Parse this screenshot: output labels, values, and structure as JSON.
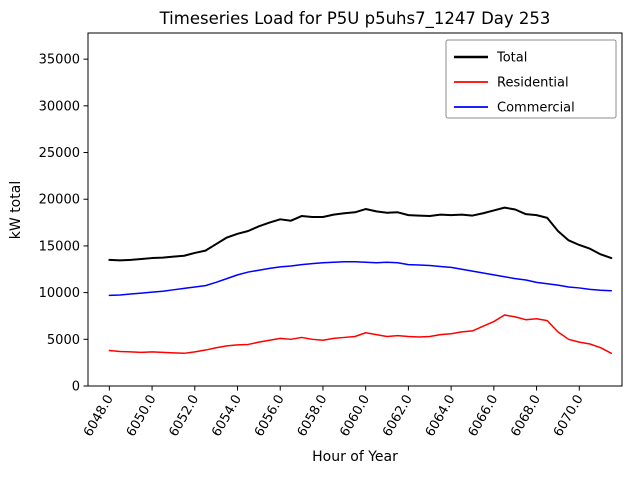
{
  "chart_data": {
    "type": "line",
    "title": "Timeseries Load for P5U p5uhs7_1247  Day 253",
    "xlabel": "Hour of Year",
    "ylabel": "kW total",
    "xlim": [
      6047,
      6072
    ],
    "ylim": [
      0,
      37800
    ],
    "grid": false,
    "legend_position": "upper right",
    "xtick_values": [
      6048,
      6050,
      6052,
      6054,
      6056,
      6058,
      6060,
      6062,
      6064,
      6066,
      6068,
      6070
    ],
    "xtick_labels": [
      "6048.0",
      "6050.0",
      "6052.0",
      "6054.0",
      "6056.0",
      "6058.0",
      "6060.0",
      "6062.0",
      "6064.0",
      "6066.0",
      "6068.0",
      "6070.0"
    ],
    "ytick_values": [
      0,
      5000,
      10000,
      15000,
      20000,
      25000,
      30000,
      35000
    ],
    "ytick_labels": [
      "0",
      "5000",
      "10000",
      "15000",
      "20000",
      "25000",
      "30000",
      "35000"
    ],
    "x": [
      6048.0,
      6048.5,
      6049.0,
      6049.5,
      6050.0,
      6050.5,
      6051.0,
      6051.5,
      6052.0,
      6052.5,
      6053.0,
      6053.5,
      6054.0,
      6054.5,
      6055.0,
      6055.5,
      6056.0,
      6056.5,
      6057.0,
      6057.5,
      6058.0,
      6058.5,
      6059.0,
      6059.5,
      6060.0,
      6060.5,
      6061.0,
      6061.5,
      6062.0,
      6062.5,
      6063.0,
      6063.5,
      6064.0,
      6064.5,
      6065.0,
      6065.5,
      6066.0,
      6066.5,
      6067.0,
      6067.5,
      6068.0,
      6068.5,
      6069.0,
      6069.5,
      6070.0,
      6070.5,
      6071.0,
      6071.5
    ],
    "series": [
      {
        "name": "Total",
        "color": "#000000",
        "linewidth": 2.0,
        "values": [
          13500,
          13450,
          13500,
          13600,
          13700,
          13750,
          13850,
          13950,
          14250,
          14500,
          15200,
          15900,
          16300,
          16600,
          17100,
          17500,
          17850,
          17700,
          18200,
          18100,
          18100,
          18350,
          18500,
          18600,
          18950,
          18700,
          18550,
          18600,
          18300,
          18250,
          18200,
          18350,
          18300,
          18350,
          18250,
          18500,
          18800,
          19100,
          18900,
          18400,
          18300,
          18000,
          16600,
          15600,
          15100,
          14700,
          14100,
          13700
        ]
      },
      {
        "name": "Residential",
        "color": "#ff0000",
        "linewidth": 1.5,
        "values": [
          3800,
          3700,
          3650,
          3600,
          3650,
          3600,
          3550,
          3500,
          3650,
          3850,
          4100,
          4300,
          4400,
          4450,
          4700,
          4900,
          5100,
          5000,
          5200,
          5000,
          4900,
          5100,
          5200,
          5300,
          5700,
          5500,
          5300,
          5400,
          5300,
          5250,
          5300,
          5500,
          5600,
          5800,
          5900,
          6400,
          6900,
          7600,
          7400,
          7100,
          7200,
          7000,
          5800,
          5000,
          4700,
          4500,
          4100,
          3500
        ]
      },
      {
        "name": "Commercial",
        "color": "#0000ff",
        "linewidth": 1.5,
        "values": [
          9700,
          9750,
          9850,
          9950,
          10050,
          10150,
          10300,
          10450,
          10600,
          10750,
          11100,
          11500,
          11900,
          12200,
          12400,
          12600,
          12750,
          12850,
          13000,
          13100,
          13200,
          13250,
          13300,
          13300,
          13250,
          13200,
          13250,
          13200,
          13000,
          12950,
          12900,
          12800,
          12700,
          12500,
          12300,
          12100,
          11900,
          11700,
          11500,
          11350,
          11100,
          10950,
          10800,
          10600,
          10500,
          10350,
          10250,
          10200
        ]
      }
    ]
  }
}
